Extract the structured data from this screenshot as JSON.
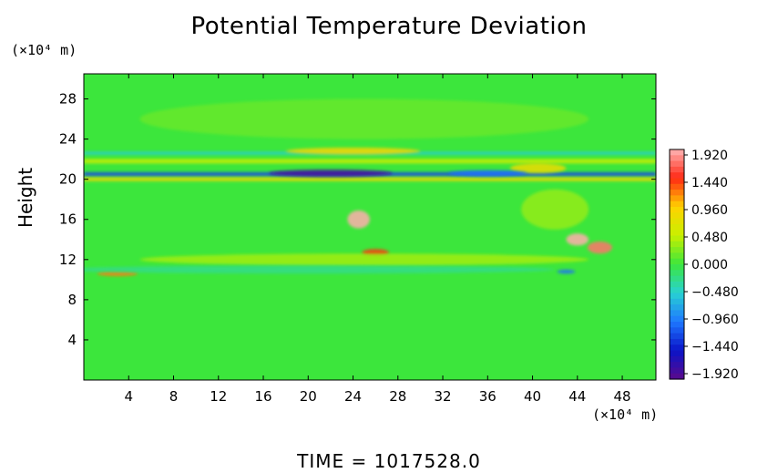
{
  "chart_data": {
    "type": "heatmap",
    "title": "Potential Temperature Deviation",
    "ylabel": "Height",
    "x_unit_label": "(×10⁴ m)",
    "y_unit_label": "(×10⁴ m)",
    "footer": "TIME = 1017528.0",
    "xlim": [
      0,
      51
    ],
    "ylim": [
      0,
      30.5
    ],
    "x_ticks": [
      4,
      8,
      12,
      16,
      20,
      24,
      28,
      32,
      36,
      40,
      44,
      48
    ],
    "y_ticks": [
      4,
      8,
      12,
      16,
      20,
      24,
      28
    ],
    "colorbar": {
      "labels": [
        "1.920",
        "1.440",
        "0.960",
        "0.480",
        "0.000",
        "−0.480",
        "−0.960",
        "−1.440",
        "−1.920"
      ],
      "vmin": -1.92,
      "vmax": 1.92
    },
    "background_value": 0.0,
    "features": [
      {
        "kind": "band",
        "x0": 0,
        "x1": 51,
        "y": 21.8,
        "thickness": 0.45,
        "value": 0.5
      },
      {
        "kind": "band",
        "x0": 0,
        "x1": 51,
        "y": 20.5,
        "thickness": 0.4,
        "value": -1.2
      },
      {
        "kind": "band",
        "x0": 0,
        "x1": 51,
        "y": 20.0,
        "thickness": 0.35,
        "value": 0.9
      },
      {
        "kind": "band",
        "x0": 0,
        "x1": 51,
        "y": 22.6,
        "thickness": 0.3,
        "value": -0.5
      },
      {
        "kind": "blob",
        "x": 22,
        "y": 20.6,
        "rx": 5.5,
        "ry": 0.35,
        "value": -1.8
      },
      {
        "kind": "blob",
        "x": 24,
        "y": 22.8,
        "rx": 6,
        "ry": 0.35,
        "value": 0.9
      },
      {
        "kind": "blob",
        "x": 24.5,
        "y": 16.0,
        "rx": 1.0,
        "ry": 0.9,
        "value": 1.9
      },
      {
        "kind": "blob",
        "x": 26,
        "y": 12.7,
        "rx": 1.2,
        "ry": 0.35,
        "value": 1.4
      },
      {
        "kind": "blob",
        "x": 44,
        "y": 14.0,
        "rx": 1.0,
        "ry": 0.6,
        "value": 1.9
      },
      {
        "kind": "blob",
        "x": 46,
        "y": 13.2,
        "rx": 1.1,
        "ry": 0.6,
        "value": 1.7
      },
      {
        "kind": "blob",
        "x": 40.5,
        "y": 21.1,
        "rx": 2.5,
        "ry": 0.5,
        "value": 0.8
      },
      {
        "kind": "blob",
        "x": 36,
        "y": 20.6,
        "rx": 3.5,
        "ry": 0.3,
        "value": -1.0
      },
      {
        "kind": "blob",
        "x": 3,
        "y": 10.6,
        "rx": 1.8,
        "ry": 0.25,
        "value": 1.2
      },
      {
        "kind": "blob",
        "x": 43,
        "y": 10.8,
        "rx": 0.8,
        "ry": 0.2,
        "value": -1.0
      },
      {
        "kind": "blob",
        "x": 25,
        "y": 12.0,
        "rx": 20,
        "ry": 0.6,
        "value": 0.35
      },
      {
        "kind": "blob",
        "x": 20,
        "y": 11.0,
        "rx": 22,
        "ry": 0.4,
        "value": -0.25
      },
      {
        "kind": "blob",
        "x": 42,
        "y": 17.0,
        "rx": 3,
        "ry": 2.0,
        "value": 0.3
      },
      {
        "kind": "blob",
        "x": 25,
        "y": 26.0,
        "rx": 20,
        "ry": 2.0,
        "value": 0.15
      }
    ]
  }
}
